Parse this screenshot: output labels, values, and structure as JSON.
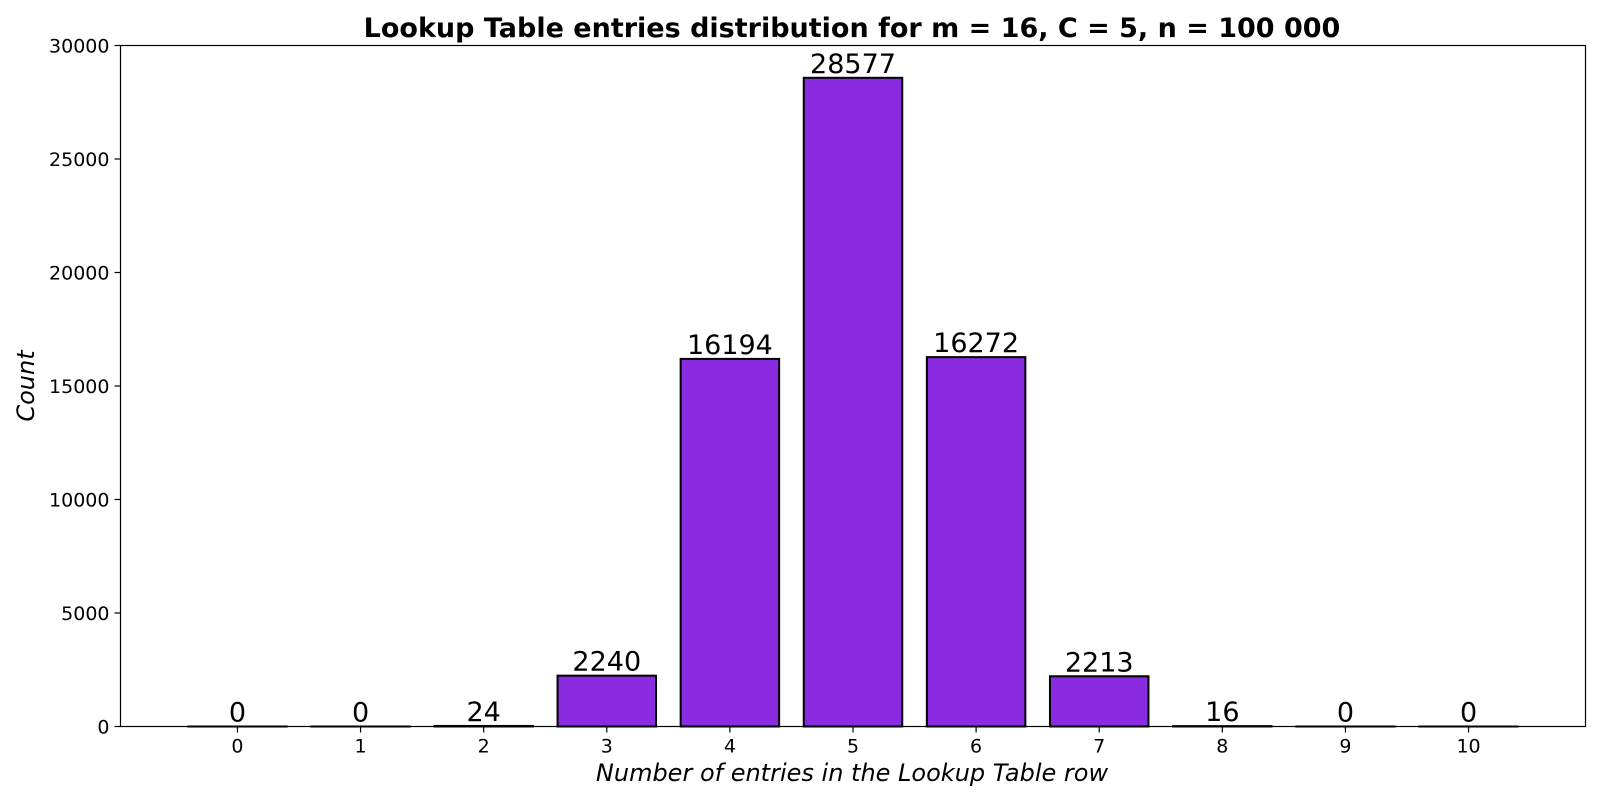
{
  "chart_data": {
    "type": "bar",
    "title": "Lookup Table entries distribution for m = 16, C = 5, n = 100 000",
    "xlabel": "Number of entries in the Lookup Table row",
    "ylabel": "Count",
    "categories": [
      "0",
      "1",
      "2",
      "3",
      "4",
      "5",
      "6",
      "7",
      "8",
      "9",
      "10"
    ],
    "values": [
      0,
      0,
      24,
      2240,
      16194,
      28577,
      16272,
      2213,
      16,
      0,
      0
    ],
    "data_labels": [
      "0",
      "0",
      "24",
      "2240",
      "16194",
      "28577",
      "16272",
      "2213",
      "16",
      "0",
      "0"
    ],
    "ylim": [
      0,
      30000
    ],
    "yticks": [
      0,
      5000,
      10000,
      15000,
      20000,
      25000,
      30000
    ],
    "ytick_labels": [
      "0",
      "5000",
      "10000",
      "15000",
      "20000",
      "25000",
      "30000"
    ],
    "xlim": [
      -0.95,
      10.95
    ],
    "grid": false,
    "legend": "none",
    "bar_color": "#8a2be2",
    "bar_edge_color": "#000000"
  }
}
